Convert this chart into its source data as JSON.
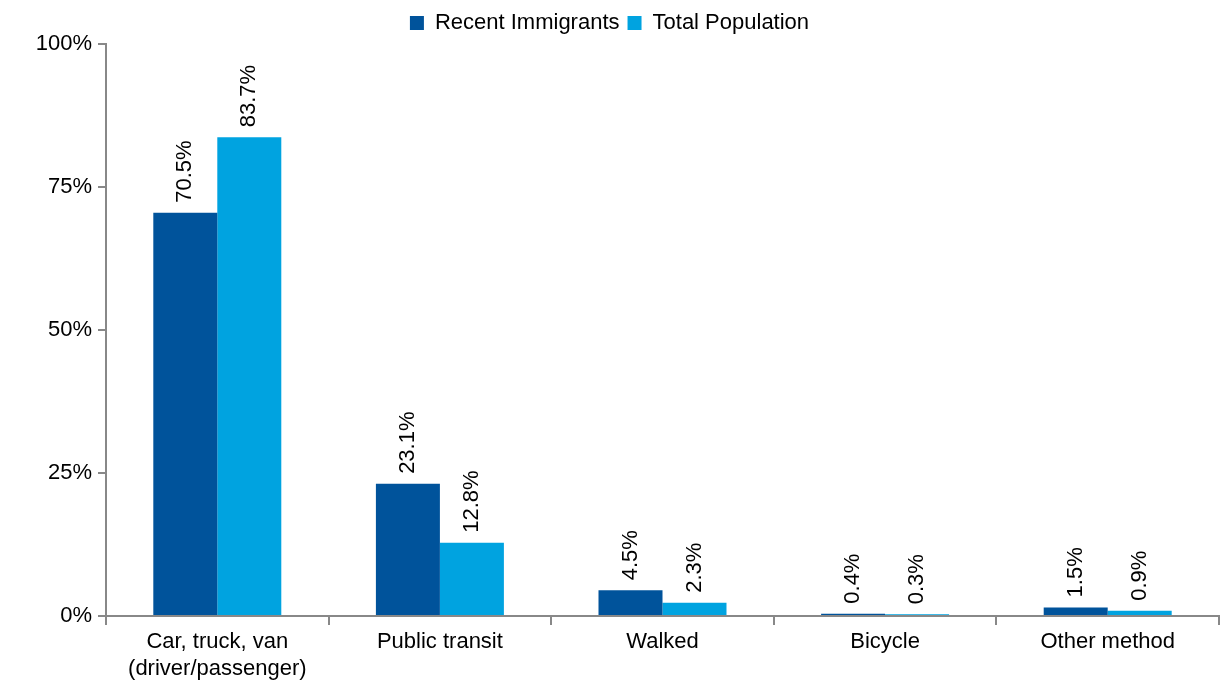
{
  "chart_data": {
    "type": "bar",
    "categories": [
      "Car, truck, van (driver/passenger)",
      "Public transit",
      "Walked",
      "Bicycle",
      "Other method"
    ],
    "series": [
      {
        "name": "Recent Immigrants",
        "color": "#00539b",
        "values": [
          70.5,
          23.1,
          4.5,
          0.4,
          1.5
        ],
        "value_labels": [
          "70.5%",
          "23.1%",
          "4.5%",
          "0.4%",
          "1.5%"
        ]
      },
      {
        "name": "Total Population",
        "color": "#00a3e0",
        "values": [
          83.7,
          12.8,
          2.3,
          0.3,
          0.9
        ],
        "value_labels": [
          "83.7%",
          "12.8%",
          "2.3%",
          "0.3%",
          "0.9%"
        ]
      }
    ],
    "ylim": [
      0,
      100
    ],
    "yticks": [
      {
        "value": 0,
        "label": "0%"
      },
      {
        "value": 25,
        "label": "25%"
      },
      {
        "value": 50,
        "label": "50%"
      },
      {
        "value": 75,
        "label": "75%"
      },
      {
        "value": 100,
        "label": "100%"
      }
    ],
    "grid": false,
    "legend": "top"
  }
}
